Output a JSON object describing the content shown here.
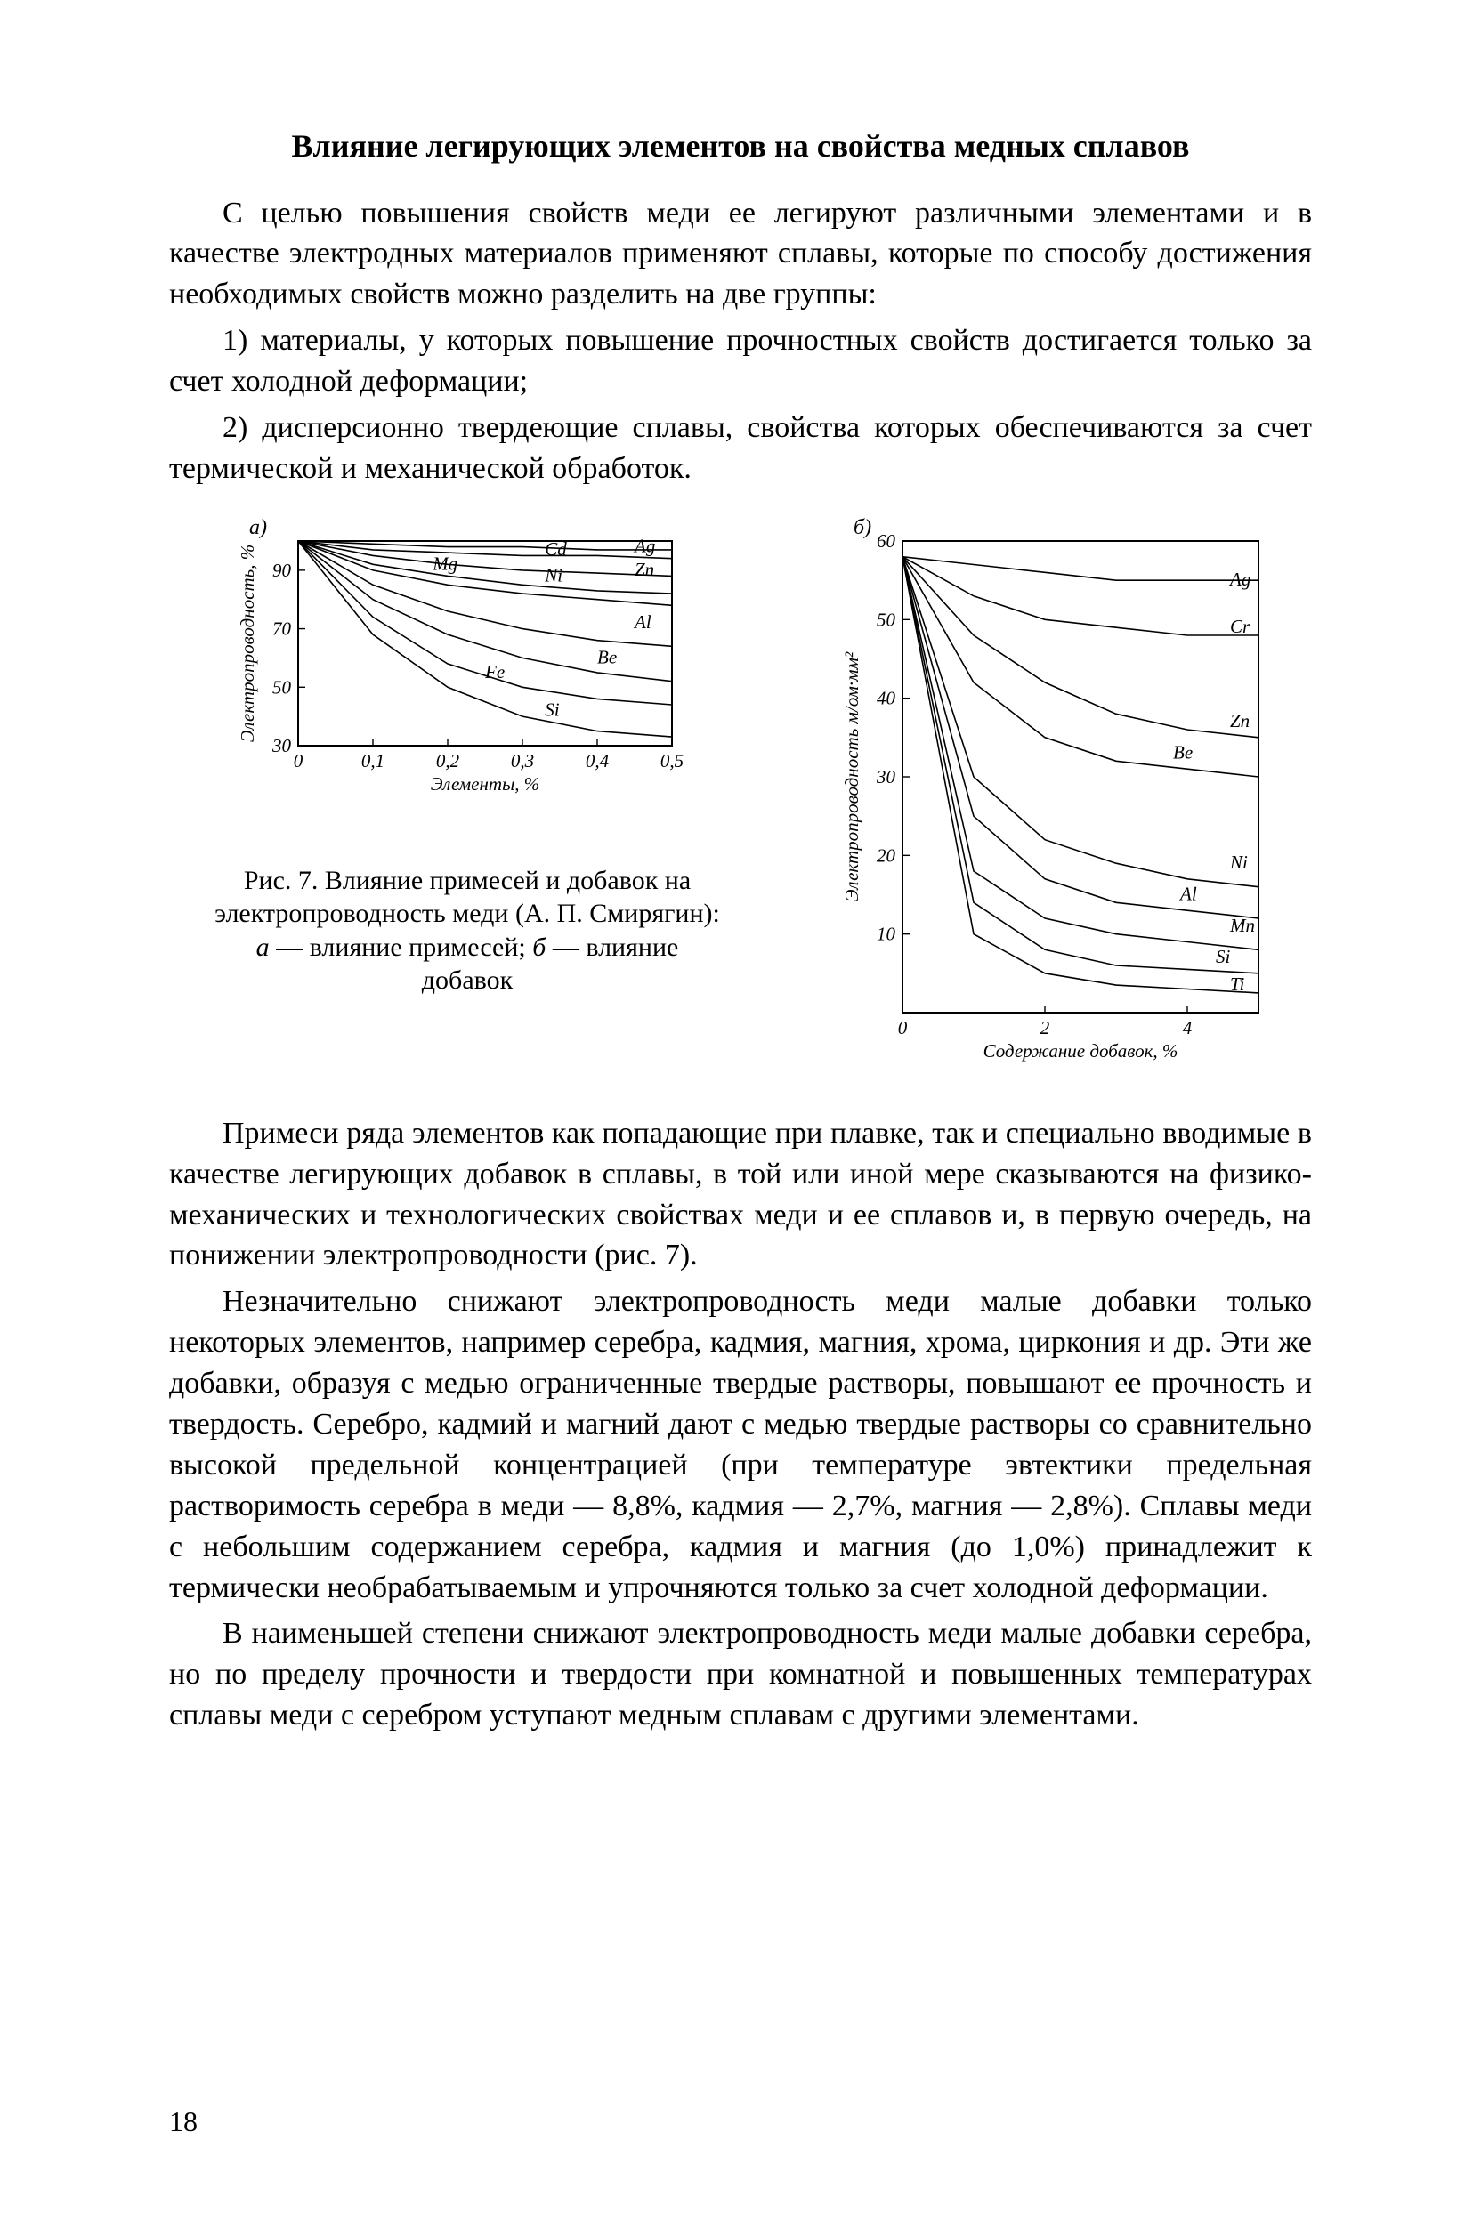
{
  "title": "Влияние легирующих элементов на свойства медных сплавов",
  "para1": "С целью повышения свойств меди ее легируют различными элементами и в качестве электродных материалов применяют сплавы, которые по способу достижения необходимых свойств можно разделить на две группы:",
  "para2": "1) материалы, у которых повышение прочностных свойств достигается только за счет холодной деформации;",
  "para3": "2) дисперсионно твердеющие сплавы, свойства которых обеспечиваются за счет термической и механической обработок.",
  "caption_line1": "Рис. 7. Влияние примесей и добавок на электропроводность меди (А. П. Смирягин):",
  "caption_line2_a": "а",
  "caption_line2_mid": " — влияние примесей; ",
  "caption_line2_b": "б",
  "caption_line2_end": " — влияние добавок",
  "para4": "Примеси ряда элементов как попадающие при плавке, так и специально вводимые в качестве легирующих добавок в сплавы, в той или иной мере сказываются на физико-механических и технологических свойствах меди и ее сплавов и, в первую очередь, на понижении электропроводности (рис. 7).",
  "para5": "Незначительно снижают электропроводность меди малые добавки только некоторых элементов, например серебра, кадмия, магния, хрома, циркония и др. Эти же добавки, образуя с медью ограниченные твердые растворы, повышают ее прочность и твердость. Серебро, кадмий и магний дают с медью твердые растворы со сравнительно высокой предельной концентрацией (при температуре эвтектики предельная растворимость серебра в меди — 8,8%, кадмия — 2,7%, магния — 2,8%). Сплавы меди с небольшим содержанием серебра, кадмия и магния (до 1,0%) принадлежит к термически необрабатываемым и упрочняются только за счет холодной деформации.",
  "para6": "В наименьшей степени снижают электропроводность меди малые добавки серебра, но по пределу прочности и твердости при комнатной и повышенных температурах сплавы меди с серебром уступают медным сплавам с другими элементами.",
  "pagenum": "18",
  "chart_a": {
    "type": "line",
    "panel_label": "а)",
    "xlabel": "Элементы, %",
    "ylabel": "Электропроводность, %",
    "xlim": [
      0,
      0.5
    ],
    "ylim": [
      30,
      100
    ],
    "xticks": [
      0,
      0.1,
      0.2,
      0.3,
      0.4,
      0.5
    ],
    "xtick_labels": [
      "0",
      "0,1",
      "0,2",
      "0,3",
      "0,4",
      "0,5"
    ],
    "yticks": [
      30,
      50,
      70,
      90
    ],
    "ytick_labels": [
      "30",
      "50",
      "70",
      "90"
    ],
    "stroke_color": "#000000",
    "line_width": 1.6,
    "background": "#ffffff",
    "series": [
      {
        "label": "Ag",
        "x": [
          0,
          0.1,
          0.2,
          0.3,
          0.4,
          0.5
        ],
        "y": [
          100,
          99,
          98,
          98,
          97,
          97
        ],
        "lx": 0.45,
        "ly": 98
      },
      {
        "label": "Cd",
        "x": [
          0,
          0.1,
          0.2,
          0.3,
          0.4,
          0.5
        ],
        "y": [
          100,
          97,
          96,
          95,
          95,
          94
        ],
        "lx": 0.33,
        "ly": 97
      },
      {
        "label": "Zn",
        "x": [
          0,
          0.1,
          0.2,
          0.3,
          0.4,
          0.5
        ],
        "y": [
          100,
          95,
          92,
          90,
          89,
          88
        ],
        "lx": 0.45,
        "ly": 90
      },
      {
        "label": "Ni",
        "x": [
          0,
          0.1,
          0.2,
          0.3,
          0.4,
          0.5
        ],
        "y": [
          100,
          92,
          88,
          85,
          83,
          82
        ],
        "lx": 0.33,
        "ly": 88
      },
      {
        "label": "Mg",
        "x": [
          0,
          0.1,
          0.2,
          0.3,
          0.4,
          0.5
        ],
        "y": [
          100,
          90,
          85,
          82,
          80,
          78
        ],
        "lx": 0.18,
        "ly": 92
      },
      {
        "label": "Al",
        "x": [
          0,
          0.1,
          0.2,
          0.3,
          0.4,
          0.5
        ],
        "y": [
          100,
          85,
          76,
          70,
          66,
          64
        ],
        "lx": 0.45,
        "ly": 72
      },
      {
        "label": "Be",
        "x": [
          0,
          0.1,
          0.2,
          0.3,
          0.4,
          0.5
        ],
        "y": [
          100,
          80,
          68,
          60,
          55,
          52
        ],
        "lx": 0.4,
        "ly": 60
      },
      {
        "label": "Fe",
        "x": [
          0,
          0.1,
          0.2,
          0.3,
          0.4,
          0.5
        ],
        "y": [
          100,
          74,
          58,
          50,
          46,
          44
        ],
        "lx": 0.25,
        "ly": 55
      },
      {
        "label": "Si",
        "x": [
          0,
          0.1,
          0.2,
          0.3,
          0.4,
          0.5
        ],
        "y": [
          100,
          68,
          50,
          40,
          35,
          33
        ],
        "lx": 0.33,
        "ly": 42
      }
    ]
  },
  "chart_b": {
    "type": "line",
    "panel_label": "б)",
    "xlabel": "Содержание добавок, %",
    "ylabel": "Электропроводность м/ом·мм²",
    "xlim": [
      0,
      5
    ],
    "ylim": [
      0,
      60
    ],
    "xticks": [
      0,
      2,
      4
    ],
    "xtick_labels": [
      "0",
      "2",
      "4"
    ],
    "yticks": [
      10,
      20,
      30,
      40,
      50,
      60
    ],
    "ytick_labels": [
      "10",
      "20",
      "30",
      "40",
      "50",
      "60"
    ],
    "stroke_color": "#000000",
    "line_width": 1.6,
    "background": "#ffffff",
    "series": [
      {
        "label": "Ag",
        "x": [
          0,
          1,
          2,
          3,
          4,
          5
        ],
        "y": [
          58,
          57,
          56,
          55,
          55,
          55
        ],
        "lx": 4.6,
        "ly": 55
      },
      {
        "label": "Cr",
        "x": [
          0,
          1,
          2,
          3,
          4,
          5
        ],
        "y": [
          58,
          53,
          50,
          49,
          48,
          48
        ],
        "lx": 4.6,
        "ly": 49
      },
      {
        "label": "Zn",
        "x": [
          0,
          1,
          2,
          3,
          4,
          5
        ],
        "y": [
          58,
          48,
          42,
          38,
          36,
          35
        ],
        "lx": 4.6,
        "ly": 37
      },
      {
        "label": "Be",
        "x": [
          0,
          1,
          2,
          3,
          4,
          5
        ],
        "y": [
          58,
          42,
          35,
          32,
          31,
          30
        ],
        "lx": 3.8,
        "ly": 33
      },
      {
        "label": "Ni",
        "x": [
          0,
          1,
          2,
          3,
          4,
          5
        ],
        "y": [
          58,
          30,
          22,
          19,
          17,
          16
        ],
        "lx": 4.6,
        "ly": 19
      },
      {
        "label": "Al",
        "x": [
          0,
          1,
          2,
          3,
          4,
          5
        ],
        "y": [
          58,
          25,
          17,
          14,
          13,
          12
        ],
        "lx": 3.9,
        "ly": 15
      },
      {
        "label": "Mn",
        "x": [
          0,
          1,
          2,
          3,
          4,
          5
        ],
        "y": [
          58,
          18,
          12,
          10,
          9,
          8
        ],
        "lx": 4.6,
        "ly": 11
      },
      {
        "label": "Si",
        "x": [
          0,
          1,
          2,
          3,
          4,
          5
        ],
        "y": [
          58,
          14,
          8,
          6,
          5.5,
          5
        ],
        "lx": 4.4,
        "ly": 7
      },
      {
        "label": "Ti",
        "x": [
          0,
          1,
          2,
          3,
          4,
          5
        ],
        "y": [
          58,
          10,
          5,
          3.5,
          3,
          2.5
        ],
        "lx": 4.6,
        "ly": 3.5
      }
    ]
  }
}
